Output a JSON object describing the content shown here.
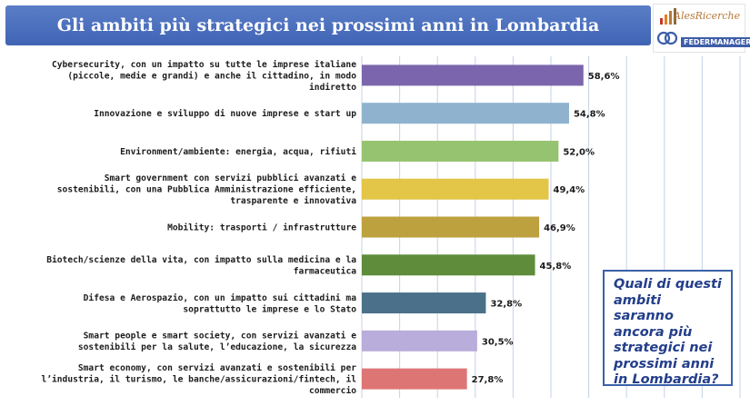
{
  "title": "Gli ambiti più strategici nei prossimi anni in Lombardia",
  "logos": {
    "primary": "AlesRicerche",
    "secondary": "FEDERMANAGER",
    "primary_icon": "bar-chart-logo-icon",
    "secondary_icon": "interlocking-rings-logo-icon"
  },
  "callout": "Quali di questi ambiti saranno ancora più strategici nei prossimi anni in Lombardia?",
  "chart_data": {
    "type": "bar",
    "orientation": "horizontal",
    "categories": [
      [
        "Cybersecurity, con un impatto su tutte le imprese italiane",
        "(piccole, medie e grandi) e anche il cittadino, in modo",
        "indiretto"
      ],
      [
        "Innovazione e sviluppo di nuove imprese e start up"
      ],
      [
        "Environment/ambiente: energia, acqua, rifiuti"
      ],
      [
        "Smart government con servizi pubblici avanzati e",
        "sostenibili, con una Pubblica Amministrazione efficiente,",
        "trasparente e innovativa"
      ],
      [
        "Mobility: trasporti / infrastrutture"
      ],
      [
        "Biotech/scienze della vita, con impatto sulla medicina e la",
        "farmaceutica"
      ],
      [
        "Difesa e Aerospazio, con un impatto sui cittadini ma",
        "soprattutto le imprese e lo Stato"
      ],
      [
        "Smart people e smart society, con servizi avanzati e",
        "sostenibili per la salute, l’educazione, la sicurezza"
      ],
      [
        "Smart economy, con servizi avanzati e sostenibili per",
        "l’industria, il turismo, le banche/assicurazioni/fintech, il",
        "commercio"
      ]
    ],
    "values": [
      58.6,
      54.8,
      52.0,
      49.4,
      46.9,
      45.8,
      32.8,
      30.5,
      27.8
    ],
    "value_labels": [
      "58,6%",
      "54,8%",
      "52,0%",
      "49,4%",
      "46,9%",
      "45,8%",
      "32,8%",
      "30,5%",
      "27,8%"
    ],
    "colors": [
      "#7b66ad",
      "#8fb3cf",
      "#96c36f",
      "#e3c548",
      "#bda13e",
      "#5e8c3a",
      "#4a7189",
      "#b9addb",
      "#de7575"
    ],
    "xlim": [
      0,
      100
    ],
    "grid": true,
    "gridline_color": "#c5d1e6",
    "title": "",
    "xlabel": "",
    "ylabel": ""
  }
}
